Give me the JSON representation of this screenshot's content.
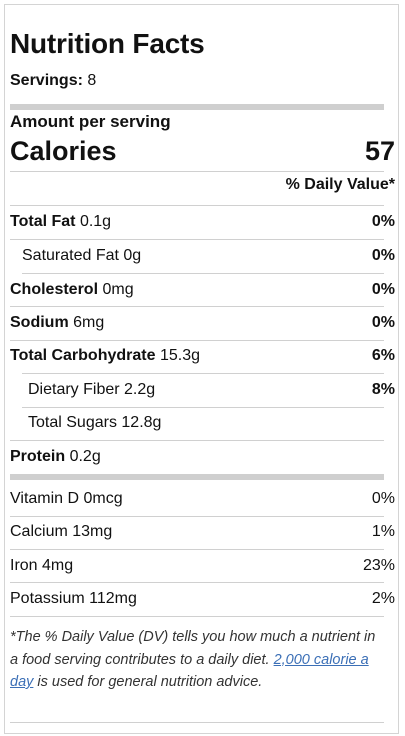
{
  "title": "Nutrition Facts",
  "servings": {
    "label": "Servings:",
    "value": "8"
  },
  "amount_per_serving": "Amount per serving",
  "calories": {
    "label": "Calories",
    "value": "57"
  },
  "daily_value_header": "% Daily Value*",
  "nutrients": [
    {
      "name": "Total Fat",
      "amount": "0.1g",
      "dv": "0%"
    },
    {
      "name": "Saturated Fat",
      "amount": "0g",
      "dv": "0%"
    },
    {
      "name": "Cholesterol",
      "amount": "0mg",
      "dv": "0%"
    },
    {
      "name": "Sodium",
      "amount": "6mg",
      "dv": "0%"
    },
    {
      "name": "Total Carbohydrate",
      "amount": "15.3g",
      "dv": "6%"
    },
    {
      "name": "Dietary Fiber",
      "amount": "2.2g",
      "dv": "8%"
    },
    {
      "name": "Total Sugars",
      "amount": "12.8g",
      "dv": ""
    },
    {
      "name": "Protein",
      "amount": "0.2g",
      "dv": ""
    }
  ],
  "vitamins": [
    {
      "name": "Vitamin D",
      "amount": "0mcg",
      "dv": "0%"
    },
    {
      "name": "Calcium",
      "amount": "13mg",
      "dv": "1%"
    },
    {
      "name": "Iron",
      "amount": "4mg",
      "dv": "23%"
    },
    {
      "name": "Potassium",
      "amount": "112mg",
      "dv": "2%"
    }
  ],
  "footnote": {
    "before": "*The % Daily Value (DV) tells you how much a nutrient in a food serving contributes to a daily diet.",
    "link": "2,000 calorie a day",
    "after": "is used for general nutrition advice."
  },
  "colors": {
    "bar": "#cfcfcf",
    "rule": "#d0d0d0",
    "link": "#3b6fb6"
  }
}
